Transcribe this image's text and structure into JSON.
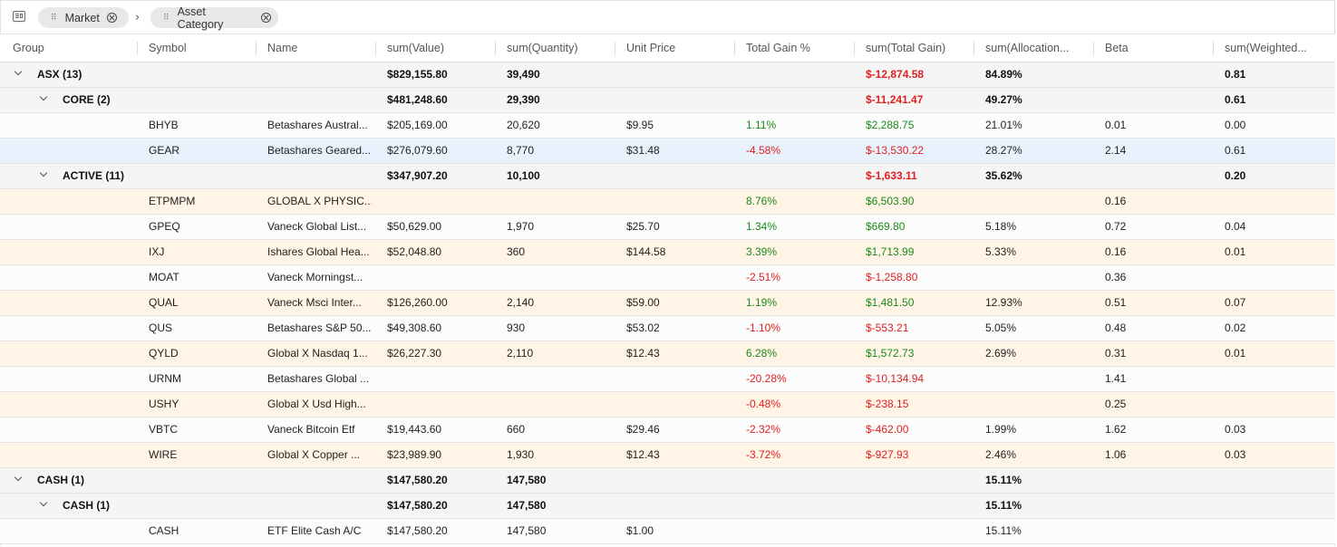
{
  "group_panel": {
    "chips": [
      {
        "label": "Market"
      },
      {
        "label": "Asset Category"
      }
    ]
  },
  "columns": [
    {
      "key": "group",
      "label": "Group"
    },
    {
      "key": "symbol",
      "label": "Symbol"
    },
    {
      "key": "name",
      "label": "Name"
    },
    {
      "key": "value",
      "label": "sum(Value)"
    },
    {
      "key": "quantity",
      "label": "sum(Quantity)"
    },
    {
      "key": "unit_price",
      "label": "Unit Price"
    },
    {
      "key": "gain_pct",
      "label": "Total Gain %"
    },
    {
      "key": "total_gain",
      "label": "sum(Total Gain)"
    },
    {
      "key": "allocation",
      "label": "sum(Allocation..."
    },
    {
      "key": "beta",
      "label": "Beta"
    },
    {
      "key": "weighted",
      "label": "sum(Weighted..."
    }
  ],
  "colors": {
    "positive": "#1a8a1a",
    "negative": "#e02020",
    "group_row_bg": "#f5f5f5",
    "alt_row_bg": "#fff4e6",
    "selected_row_bg": "#e8f2fc"
  },
  "rows": [
    {
      "type": "group",
      "level": 0,
      "group": "ASX (13)",
      "value": "$829,155.80",
      "quantity": "39,490",
      "total_gain": "$-12,874.58",
      "total_gain_sign": "neg",
      "allocation": "84.89%",
      "weighted": "0.81"
    },
    {
      "type": "group",
      "level": 1,
      "group": "CORE (2)",
      "value": "$481,248.60",
      "quantity": "29,390",
      "total_gain": "$-11,241.47",
      "total_gain_sign": "neg",
      "allocation": "49.27%",
      "weighted": "0.61"
    },
    {
      "type": "leaf",
      "style": "plain",
      "symbol": "BHYB",
      "name": "Betashares Austral...",
      "value": "$205,169.00",
      "quantity": "20,620",
      "unit_price": "$9.95",
      "gain_pct": "1.11%",
      "gain_sign": "pos",
      "total_gain": "$2,288.75",
      "total_gain_sign": "pos",
      "allocation": "21.01%",
      "beta": "0.01",
      "weighted": "0.00"
    },
    {
      "type": "leaf",
      "style": "sel",
      "symbol": "GEAR",
      "name": "Betashares Geared...",
      "value": "$276,079.60",
      "quantity": "8,770",
      "unit_price": "$31.48",
      "gain_pct": "-4.58%",
      "gain_sign": "neg",
      "total_gain": "$-13,530.22",
      "total_gain_sign": "neg",
      "allocation": "28.27%",
      "beta": "2.14",
      "weighted": "0.61"
    },
    {
      "type": "group",
      "level": 1,
      "group": "ACTIVE (11)",
      "value": "$347,907.20",
      "quantity": "10,100",
      "total_gain": "$-1,633.11",
      "total_gain_sign": "neg",
      "allocation": "35.62%",
      "weighted": "0.20"
    },
    {
      "type": "leaf",
      "style": "alt",
      "symbol": "ETPMPM",
      "name": "GLOBAL X PHYSIC...",
      "value": "",
      "quantity": "",
      "unit_price": "",
      "gain_pct": "8.76%",
      "gain_sign": "pos",
      "total_gain": "$6,503.90",
      "total_gain_sign": "pos",
      "allocation": "",
      "beta": "0.16",
      "weighted": ""
    },
    {
      "type": "leaf",
      "style": "plain",
      "symbol": "GPEQ",
      "name": "Vaneck Global List...",
      "value": "$50,629.00",
      "quantity": "1,970",
      "unit_price": "$25.70",
      "gain_pct": "1.34%",
      "gain_sign": "pos",
      "total_gain": "$669.80",
      "total_gain_sign": "pos",
      "allocation": "5.18%",
      "beta": "0.72",
      "weighted": "0.04"
    },
    {
      "type": "leaf",
      "style": "alt",
      "symbol": "IXJ",
      "name": "Ishares Global Hea...",
      "value": "$52,048.80",
      "quantity": "360",
      "unit_price": "$144.58",
      "gain_pct": "3.39%",
      "gain_sign": "pos",
      "total_gain": "$1,713.99",
      "total_gain_sign": "pos",
      "allocation": "5.33%",
      "beta": "0.16",
      "weighted": "0.01"
    },
    {
      "type": "leaf",
      "style": "plain",
      "symbol": "MOAT",
      "name": "Vaneck Morningst...",
      "value": "",
      "quantity": "",
      "unit_price": "",
      "gain_pct": "-2.51%",
      "gain_sign": "neg",
      "total_gain": "$-1,258.80",
      "total_gain_sign": "neg",
      "allocation": "",
      "beta": "0.36",
      "weighted": ""
    },
    {
      "type": "leaf",
      "style": "alt",
      "symbol": "QUAL",
      "name": "Vaneck Msci Inter...",
      "value": "$126,260.00",
      "quantity": "2,140",
      "unit_price": "$59.00",
      "gain_pct": "1.19%",
      "gain_sign": "pos",
      "total_gain": "$1,481.50",
      "total_gain_sign": "pos",
      "allocation": "12.93%",
      "beta": "0.51",
      "weighted": "0.07"
    },
    {
      "type": "leaf",
      "style": "plain",
      "symbol": "QUS",
      "name": "Betashares S&P 50...",
      "value": "$49,308.60",
      "quantity": "930",
      "unit_price": "$53.02",
      "gain_pct": "-1.10%",
      "gain_sign": "neg",
      "total_gain": "$-553.21",
      "total_gain_sign": "neg",
      "allocation": "5.05%",
      "beta": "0.48",
      "weighted": "0.02"
    },
    {
      "type": "leaf",
      "style": "alt",
      "symbol": "QYLD",
      "name": "Global X Nasdaq 1...",
      "value": "$26,227.30",
      "quantity": "2,110",
      "unit_price": "$12.43",
      "gain_pct": "6.28%",
      "gain_sign": "pos",
      "total_gain": "$1,572.73",
      "total_gain_sign": "pos",
      "allocation": "2.69%",
      "beta": "0.31",
      "weighted": "0.01"
    },
    {
      "type": "leaf",
      "style": "plain",
      "symbol": "URNM",
      "name": "Betashares Global ...",
      "value": "",
      "quantity": "",
      "unit_price": "",
      "gain_pct": "-20.28%",
      "gain_sign": "neg",
      "total_gain": "$-10,134.94",
      "total_gain_sign": "neg",
      "allocation": "",
      "beta": "1.41",
      "weighted": ""
    },
    {
      "type": "leaf",
      "style": "alt",
      "symbol": "USHY",
      "name": "Global X Usd High...",
      "value": "",
      "quantity": "",
      "unit_price": "",
      "gain_pct": "-0.48%",
      "gain_sign": "neg",
      "total_gain": "$-238.15",
      "total_gain_sign": "neg",
      "allocation": "",
      "beta": "0.25",
      "weighted": ""
    },
    {
      "type": "leaf",
      "style": "plain",
      "symbol": "VBTC",
      "name": "Vaneck Bitcoin Etf",
      "value": "$19,443.60",
      "quantity": "660",
      "unit_price": "$29.46",
      "gain_pct": "-2.32%",
      "gain_sign": "neg",
      "total_gain": "$-462.00",
      "total_gain_sign": "neg",
      "allocation": "1.99%",
      "beta": "1.62",
      "weighted": "0.03"
    },
    {
      "type": "leaf",
      "style": "alt",
      "symbol": "WIRE",
      "name": "Global X Copper ...",
      "value": "$23,989.90",
      "quantity": "1,930",
      "unit_price": "$12.43",
      "gain_pct": "-3.72%",
      "gain_sign": "neg",
      "total_gain": "$-927.93",
      "total_gain_sign": "neg",
      "allocation": "2.46%",
      "beta": "1.06",
      "weighted": "0.03"
    },
    {
      "type": "group",
      "level": 0,
      "group": "CASH (1)",
      "value": "$147,580.20",
      "quantity": "147,580",
      "total_gain": "",
      "total_gain_sign": "",
      "allocation": "15.11%",
      "weighted": ""
    },
    {
      "type": "group",
      "level": 1,
      "group": "CASH (1)",
      "value": "$147,580.20",
      "quantity": "147,580",
      "total_gain": "",
      "total_gain_sign": "",
      "allocation": "15.11%",
      "weighted": ""
    },
    {
      "type": "leaf",
      "style": "plain",
      "symbol": "CASH",
      "name": "ETF Elite Cash A/C",
      "value": "$147,580.20",
      "quantity": "147,580",
      "unit_price": "$1.00",
      "gain_pct": "",
      "gain_sign": "",
      "total_gain": "",
      "total_gain_sign": "",
      "allocation": "15.11%",
      "beta": "",
      "weighted": ""
    }
  ]
}
